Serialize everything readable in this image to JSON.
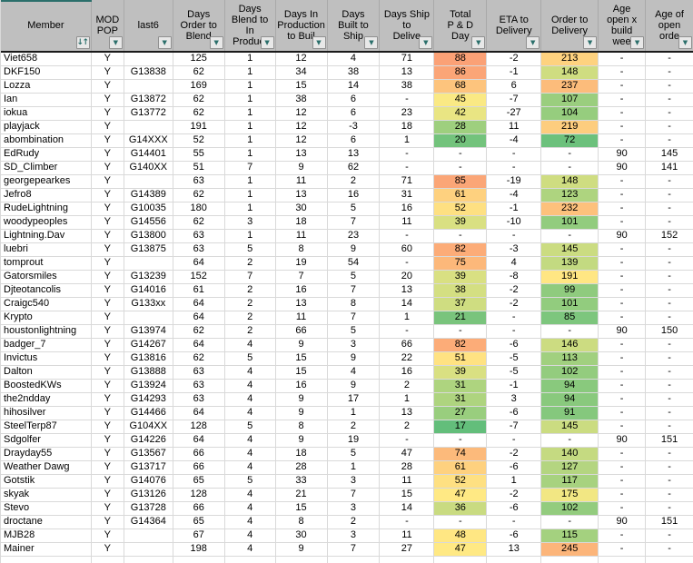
{
  "table": {
    "columns": [
      {
        "id": "member",
        "label": "Member",
        "sorted": true
      },
      {
        "id": "mod-pop",
        "label": "MOD\nPOP"
      },
      {
        "id": "last6",
        "label": "last6"
      },
      {
        "id": "days-order-to-blend",
        "label": "Days\nOrder to\nBlend"
      },
      {
        "id": "days-blend-to-in-production",
        "label": "Days\nBlend to\nIn\nProduct"
      },
      {
        "id": "days-in-production-to-build",
        "label": "Days In\nProduction\nto Buil"
      },
      {
        "id": "days-built-to-ship",
        "label": "Days\nBuilt to\nShip"
      },
      {
        "id": "days-ship-to-delivery",
        "label": "Days Ship\nto\nDelive"
      },
      {
        "id": "total-p-and-d-days",
        "label": "Total\nP & D\nDay"
      },
      {
        "id": "eta-to-delivery",
        "label": "ETA to\nDelivery"
      },
      {
        "id": "order-to-delivery",
        "label": "Order to\nDelivery"
      },
      {
        "id": "age-open-x-build-weeks",
        "label": "Age\nopen x\nbuild\nwee"
      },
      {
        "id": "age-of-open-order",
        "label": "Age of\nopen\norde"
      }
    ],
    "rows": [
      {
        "cells": [
          "Viet658",
          "Y",
          "",
          "125",
          "1",
          "12",
          "4",
          "71",
          "88",
          "-2",
          "213",
          "-",
          "-"
        ],
        "bg8": "#FBA176",
        "bg10": "#FED27F"
      },
      {
        "cells": [
          "DKF150",
          "Y",
          "G13838",
          "62",
          "1",
          "34",
          "38",
          "13",
          "86",
          "-1",
          "148",
          "-",
          "-"
        ],
        "bg8": "#FBA577",
        "bg10": "#CFDD81"
      },
      {
        "cells": [
          "Lozza",
          "Y",
          "",
          "169",
          "1",
          "15",
          "14",
          "38",
          "68",
          "6",
          "237",
          "-",
          "-"
        ],
        "bg8": "#FDC47D",
        "bg10": "#FCBC7B"
      },
      {
        "cells": [
          "Ian",
          "Y",
          "G13872",
          "62",
          "1",
          "38",
          "6",
          "-",
          "45",
          "-7",
          "107",
          "-",
          "-"
        ],
        "bg8": "#FAE984",
        "bg10": "#9ACE7E"
      },
      {
        "cells": [
          "iokua",
          "Y",
          "G13772",
          "62",
          "1",
          "12",
          "6",
          "23",
          "42",
          "-27",
          "104",
          "-",
          "-"
        ],
        "bg8": "#E9E583",
        "bg10": "#96CD7E"
      },
      {
        "cells": [
          "playjack",
          "Y",
          "",
          "191",
          "1",
          "12",
          "-3",
          "18",
          "28",
          "11",
          "219",
          "-",
          "-"
        ],
        "bg8": "#9ECF7E",
        "bg10": "#FDCD7E"
      },
      {
        "cells": [
          "abombination",
          "Y",
          "G14XXX",
          "52",
          "1",
          "12",
          "6",
          "1",
          "20",
          "-4",
          "72",
          "-",
          "-"
        ],
        "bg8": "#73C37C",
        "bg10": "#6CC17C"
      },
      {
        "cells": [
          "EdRudy",
          "Y",
          "G14401",
          "55",
          "1",
          "13",
          "13",
          "-",
          "-",
          "-",
          "-",
          "90",
          "145"
        ]
      },
      {
        "cells": [
          "SD_Climber",
          "Y",
          "G140XX",
          "51",
          "7",
          "9",
          "62",
          "-",
          "-",
          "-",
          "-",
          "90",
          "141"
        ]
      },
      {
        "cells": [
          "georgepearkes",
          "Y",
          "",
          "63",
          "1",
          "11",
          "2",
          "71",
          "85",
          "-19",
          "148",
          "-",
          "-"
        ],
        "bg8": "#FBA677",
        "bg10": "#CFDD81"
      },
      {
        "cells": [
          "Jefro8",
          "Y",
          "G14389",
          "62",
          "1",
          "13",
          "16",
          "31",
          "61",
          "-4",
          "123",
          "-",
          "-"
        ],
        "bg8": "#FED17F",
        "bg10": "#AED47F"
      },
      {
        "cells": [
          "RudeLightning",
          "Y",
          "G10035",
          "180",
          "1",
          "30",
          "5",
          "16",
          "52",
          "-1",
          "232",
          "-",
          "-"
        ],
        "bg8": "#FEE082",
        "bg10": "#FDC17C"
      },
      {
        "cells": [
          "woodypeoples",
          "Y",
          "G14556",
          "62",
          "3",
          "18",
          "7",
          "11",
          "39",
          "-10",
          "101",
          "-",
          "-"
        ],
        "bg8": "#D9E082",
        "bg10": "#92CC7E"
      },
      {
        "cells": [
          "Lightning.Dav",
          "Y",
          "G13800",
          "63",
          "1",
          "11",
          "23",
          "-",
          "-",
          "-",
          "-",
          "90",
          "152"
        ]
      },
      {
        "cells": [
          "luebri",
          "Y",
          "G13875",
          "63",
          "5",
          "8",
          "9",
          "60",
          "82",
          "-3",
          "145",
          "-",
          "-"
        ],
        "bg8": "#FCAC78",
        "bg10": "#CBDC81"
      },
      {
        "cells": [
          "tomprout",
          "Y",
          "",
          "64",
          "2",
          "19",
          "54",
          "-",
          "75",
          "4",
          "139",
          "-",
          "-"
        ],
        "bg8": "#FCB87A",
        "bg10": "#C3DA81"
      },
      {
        "cells": [
          "Gatorsmiles",
          "Y",
          "G13239",
          "152",
          "7",
          "7",
          "5",
          "20",
          "39",
          "-8",
          "191",
          "-",
          "-"
        ],
        "bg8": "#D9E082",
        "bg10": "#FFE683"
      },
      {
        "cells": [
          "Djteotancolis",
          "Y",
          "G14016",
          "61",
          "2",
          "16",
          "7",
          "13",
          "38",
          "-2",
          "99",
          "-",
          "-"
        ],
        "bg8": "#D4DF82",
        "bg10": "#8FCB7E"
      },
      {
        "cells": [
          "Craigc540",
          "Y",
          "G133xx",
          "64",
          "2",
          "13",
          "8",
          "14",
          "37",
          "-2",
          "101",
          "-",
          "-"
        ],
        "bg8": "#CFDD81",
        "bg10": "#92CC7E"
      },
      {
        "cells": [
          "Krypto",
          "Y",
          "",
          "64",
          "2",
          "11",
          "7",
          "1",
          "21",
          "-",
          "85",
          "-",
          "-"
        ],
        "bg8": "#79C47C",
        "bg10": "#7DC67D"
      },
      {
        "cells": [
          "houstonlightning",
          "Y",
          "G13974",
          "62",
          "2",
          "66",
          "5",
          "-",
          "-",
          "-",
          "-",
          "90",
          "150"
        ]
      },
      {
        "cells": [
          "badger_7",
          "Y",
          "G14267",
          "64",
          "4",
          "9",
          "3",
          "66",
          "82",
          "-6",
          "146",
          "-",
          "-"
        ],
        "bg8": "#FCAC78",
        "bg10": "#CCDC81"
      },
      {
        "cells": [
          "Invictus",
          "Y",
          "G13816",
          "62",
          "5",
          "15",
          "9",
          "22",
          "51",
          "-5",
          "113",
          "-",
          "-"
        ],
        "bg8": "#FFE282",
        "bg10": "#A1D07F"
      },
      {
        "cells": [
          "Dalton",
          "Y",
          "G13888",
          "63",
          "4",
          "15",
          "4",
          "16",
          "39",
          "-5",
          "102",
          "-",
          "-"
        ],
        "bg8": "#D9E082",
        "bg10": "#93CC7E"
      },
      {
        "cells": [
          "BoostedKWs",
          "Y",
          "G13924",
          "63",
          "4",
          "16",
          "9",
          "2",
          "31",
          "-1",
          "94",
          "-",
          "-"
        ],
        "bg8": "#AED47F",
        "bg10": "#89C97D"
      },
      {
        "cells": [
          "the2ndday",
          "Y",
          "G14293",
          "63",
          "4",
          "9",
          "17",
          "1",
          "31",
          "3",
          "94",
          "-",
          "-"
        ],
        "bg8": "#AED47F",
        "bg10": "#89C97D"
      },
      {
        "cells": [
          "hihosilver",
          "Y",
          "G14466",
          "64",
          "4",
          "9",
          "1",
          "13",
          "27",
          "-6",
          "91",
          "-",
          "-"
        ],
        "bg8": "#99CE7E",
        "bg10": "#85C87D"
      },
      {
        "cells": [
          "SteelTerp87",
          "Y",
          "G104XX",
          "128",
          "5",
          "8",
          "2",
          "2",
          "17",
          "-7",
          "145",
          "-",
          "-"
        ],
        "bg8": "#63BE7B",
        "bg10": "#CBDC81"
      },
      {
        "cells": [
          "Sdgolfer",
          "Y",
          "G14226",
          "64",
          "4",
          "9",
          "19",
          "-",
          "-",
          "-",
          "-",
          "90",
          "151"
        ]
      },
      {
        "cells": [
          "Drayday55",
          "Y",
          "G13567",
          "66",
          "4",
          "18",
          "5",
          "47",
          "74",
          "-2",
          "140",
          "-",
          "-"
        ],
        "bg8": "#FCBA7B",
        "bg10": "#C5DA81"
      },
      {
        "cells": [
          "Weather Dawg",
          "Y",
          "G13717",
          "66",
          "4",
          "28",
          "1",
          "28",
          "61",
          "-6",
          "127",
          "-",
          "-"
        ],
        "bg8": "#FED17F",
        "bg10": "#B4D580"
      },
      {
        "cells": [
          "Gotstik",
          "Y",
          "G14076",
          "65",
          "5",
          "33",
          "3",
          "11",
          "52",
          "1",
          "117",
          "-",
          "-"
        ],
        "bg8": "#FEE082",
        "bg10": "#A7D27F"
      },
      {
        "cells": [
          "skyak",
          "Y",
          "G13126",
          "128",
          "4",
          "21",
          "7",
          "15",
          "47",
          "-2",
          "175",
          "-",
          "-"
        ],
        "bg8": "#FFE984",
        "bg10": "#F2E783"
      },
      {
        "cells": [
          "Stevo",
          "Y",
          "G13728",
          "66",
          "4",
          "15",
          "3",
          "14",
          "36",
          "-6",
          "102",
          "-",
          "-"
        ],
        "bg8": "#C9DB81",
        "bg10": "#93CC7E"
      },
      {
        "cells": [
          "droctane",
          "Y",
          "G14364",
          "65",
          "4",
          "8",
          "2",
          "-",
          "-",
          "-",
          "-",
          "90",
          "151"
        ]
      },
      {
        "cells": [
          "MJB28",
          "Y",
          "",
          "67",
          "4",
          "30",
          "3",
          "11",
          "48",
          "-6",
          "115",
          "-",
          "-"
        ],
        "bg8": "#FFE783",
        "bg10": "#A4D17F"
      },
      {
        "cells": [
          "Mainer",
          "Y",
          "",
          "198",
          "4",
          "9",
          "7",
          "27",
          "47",
          "13",
          "245",
          "-",
          "-"
        ],
        "bg8": "#FFE984",
        "bg10": "#FCB57A"
      }
    ]
  },
  "icons": {
    "filter_dropdown": "▼",
    "sort_ascending_filter": "↓↑"
  },
  "colors": {
    "header_bg": "#BFBFBF",
    "header_border": "#1A1A1A",
    "grid_line": "#D9D9D9",
    "filter_arrow": "#2B6F6B",
    "accent_strip": "#2B6F6B",
    "scale_green": "#63BE7B",
    "scale_yellow": "#FFEB84",
    "scale_orange": "#F8696B"
  }
}
